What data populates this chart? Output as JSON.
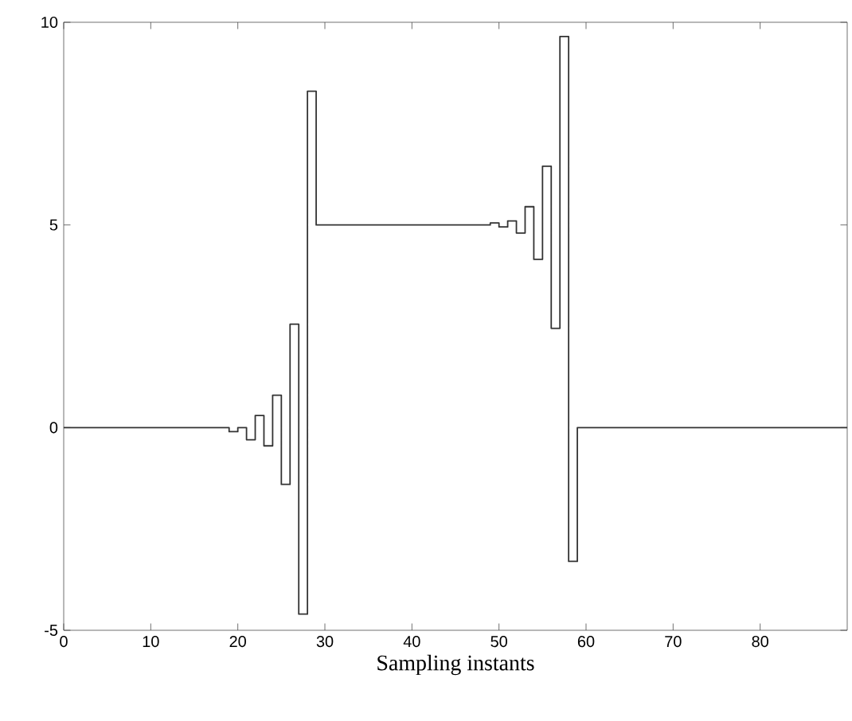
{
  "chart_data": {
    "type": "step",
    "xlabel": "Sampling instants",
    "x": [
      0,
      19,
      20,
      21,
      22,
      23,
      24,
      25,
      26,
      27,
      28,
      29,
      49,
      50,
      51,
      52,
      53,
      54,
      55,
      56,
      57,
      58,
      59,
      90
    ],
    "values": [
      0,
      -0.1,
      0,
      -0.3,
      0.3,
      -0.45,
      0.8,
      -1.4,
      2.55,
      -4.6,
      8.3,
      5,
      5.05,
      4.95,
      5.1,
      4.8,
      5.45,
      4.15,
      6.45,
      2.45,
      9.65,
      -3.3,
      0,
      0
    ],
    "color": "#333333",
    "xlim": [
      0,
      90
    ],
    "ylim": [
      -5,
      10
    ],
    "xticks": [
      0,
      10,
      20,
      30,
      40,
      50,
      60,
      70,
      80
    ],
    "yticks": [
      -5,
      0,
      5,
      10
    ]
  }
}
